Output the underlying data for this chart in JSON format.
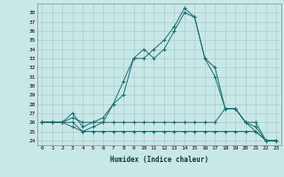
{
  "xlabel": "Humidex (Indice chaleur)",
  "background_color": "#c8e8e8",
  "grid_color": "#aacccc",
  "line_color": "#1a6b6b",
  "xlim": [
    -0.5,
    23.5
  ],
  "ylim": [
    23.5,
    39.0
  ],
  "yticks": [
    24,
    25,
    26,
    27,
    28,
    29,
    30,
    31,
    32,
    33,
    34,
    35,
    36,
    37,
    38
  ],
  "xticks": [
    0,
    1,
    2,
    3,
    4,
    5,
    6,
    7,
    8,
    9,
    10,
    11,
    12,
    13,
    14,
    15,
    16,
    17,
    18,
    19,
    20,
    21,
    22,
    23
  ],
  "series": [
    [
      26,
      26,
      26,
      27,
      25.5,
      26,
      26.5,
      28,
      29,
      33,
      34,
      33,
      34,
      36,
      38,
      37.5,
      33,
      31,
      27.5,
      27.5,
      26,
      25.5,
      24,
      24
    ],
    [
      26,
      26,
      26,
      26,
      25,
      25.5,
      26,
      28,
      30.5,
      33,
      33,
      34,
      35,
      36.5,
      38.5,
      37.5,
      33,
      32,
      27.5,
      27.5,
      26,
      25,
      24,
      24
    ],
    [
      26,
      26,
      26,
      26.5,
      26,
      26,
      26,
      26,
      26,
      26,
      26,
      26,
      26,
      26,
      26,
      26,
      26,
      26,
      27.5,
      27.5,
      26,
      26,
      24,
      24
    ],
    [
      26,
      26,
      26,
      25.5,
      25,
      25,
      25,
      25,
      25,
      25,
      25,
      25,
      25,
      25,
      25,
      25,
      25,
      25,
      25,
      25,
      25,
      25,
      24,
      24
    ]
  ]
}
